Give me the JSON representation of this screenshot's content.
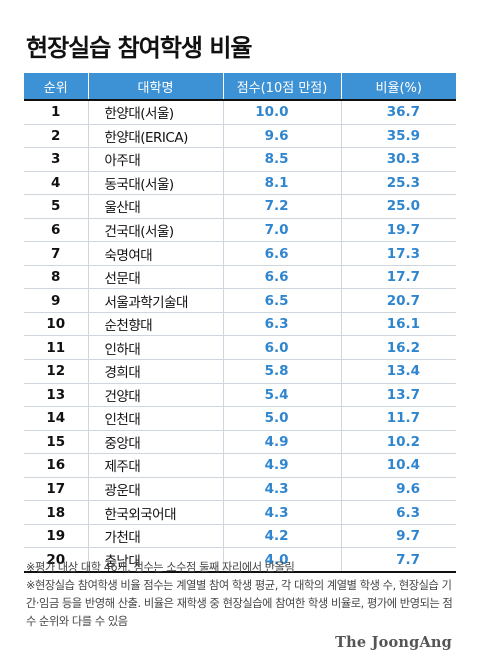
{
  "title": "현장실습 참여학생 비율",
  "chart_data": {
    "type": "table",
    "columns": [
      "순위",
      "대학명",
      "점수(10점 만점)",
      "비율(%)"
    ],
    "rows": [
      {
        "rank": "1",
        "univ": "한양대(서울)",
        "score": "10.0",
        "ratio": "36.7"
      },
      {
        "rank": "2",
        "univ": "한양대(ERICA)",
        "score": "9.6",
        "ratio": "35.9"
      },
      {
        "rank": "3",
        "univ": "아주대",
        "score": "8.5",
        "ratio": "30.3"
      },
      {
        "rank": "4",
        "univ": "동국대(서울)",
        "score": "8.1",
        "ratio": "25.3"
      },
      {
        "rank": "5",
        "univ": "울산대",
        "score": "7.2",
        "ratio": "25.0"
      },
      {
        "rank": "6",
        "univ": "건국대(서울)",
        "score": "7.0",
        "ratio": "19.7"
      },
      {
        "rank": "7",
        "univ": "숙명여대",
        "score": "6.6",
        "ratio": "17.3"
      },
      {
        "rank": "8",
        "univ": "선문대",
        "score": "6.6",
        "ratio": "17.7"
      },
      {
        "rank": "9",
        "univ": "서울과학기술대",
        "score": "6.5",
        "ratio": "20.7"
      },
      {
        "rank": "10",
        "univ": "순천향대",
        "score": "6.3",
        "ratio": "16.1"
      },
      {
        "rank": "11",
        "univ": "인하대",
        "score": "6.0",
        "ratio": "16.2"
      },
      {
        "rank": "12",
        "univ": "경희대",
        "score": "5.8",
        "ratio": "13.4"
      },
      {
        "rank": "13",
        "univ": "건양대",
        "score": "5.4",
        "ratio": "13.7"
      },
      {
        "rank": "14",
        "univ": "인천대",
        "score": "5.0",
        "ratio": "11.7"
      },
      {
        "rank": "15",
        "univ": "중앙대",
        "score": "4.9",
        "ratio": "10.2"
      },
      {
        "rank": "16",
        "univ": "제주대",
        "score": "4.9",
        "ratio": "10.4"
      },
      {
        "rank": "17",
        "univ": "광운대",
        "score": "4.3",
        "ratio": "9.6"
      },
      {
        "rank": "18",
        "univ": "한국외국어대",
        "score": "4.3",
        "ratio": "6.3"
      },
      {
        "rank": "19",
        "univ": "가천대",
        "score": "4.2",
        "ratio": "9.7"
      },
      {
        "rank": "20",
        "univ": "충남대",
        "score": "4.0",
        "ratio": "7.7"
      }
    ]
  },
  "notes": {
    "note1": "※평가 대상 대학 46개, 점수는 소수점 둘째 자리에서 반올림",
    "note2": "※현장실습 참여학생 비율 점수는 계열별 참여 학생 평균, 각 대학의 계열별 학생 수, 현장실습 기간·임금 등을 반영해 산출. 비율은 재학생 중 현장실습에 참여한 학생 비율로, 평가에 반영되는 점수 순위와 다를 수 있음"
  },
  "logo": "The JoongAng",
  "colors": {
    "header_bg": "#3d92d6",
    "value_text": "#2f86cf"
  }
}
